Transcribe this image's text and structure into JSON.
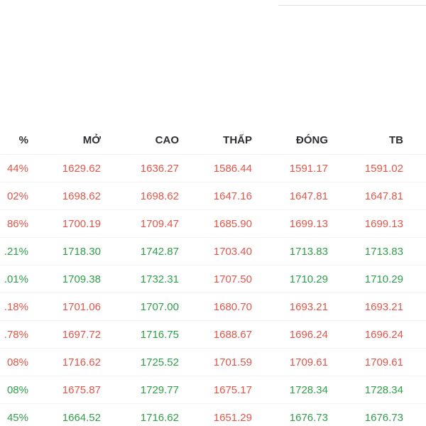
{
  "colors": {
    "up": "#2e9e48",
    "down": "#e0564a",
    "header_text": "#2e2e33",
    "divider": "#f3f3f5"
  },
  "table": {
    "headers": [
      "%",
      "MỞ",
      "CAO",
      "THẤP",
      "ĐÓNG",
      "TB"
    ],
    "column_keys": [
      "percent",
      "open",
      "high",
      "low",
      "close",
      "avg"
    ],
    "rows": [
      {
        "cells": [
          {
            "v": "44%",
            "c": "down"
          },
          {
            "v": "1629.62",
            "c": "down"
          },
          {
            "v": "1636.27",
            "c": "down"
          },
          {
            "v": "1586.44",
            "c": "down"
          },
          {
            "v": "1591.17",
            "c": "down"
          },
          {
            "v": "1591.02",
            "c": "down"
          }
        ]
      },
      {
        "cells": [
          {
            "v": "02%",
            "c": "down"
          },
          {
            "v": "1698.62",
            "c": "down"
          },
          {
            "v": "1698.62",
            "c": "down"
          },
          {
            "v": "1647.16",
            "c": "down"
          },
          {
            "v": "1647.81",
            "c": "down"
          },
          {
            "v": "1647.81",
            "c": "down"
          }
        ]
      },
      {
        "cells": [
          {
            "v": "86%",
            "c": "down"
          },
          {
            "v": "1700.19",
            "c": "down"
          },
          {
            "v": "1709.47",
            "c": "down"
          },
          {
            "v": "1685.90",
            "c": "down"
          },
          {
            "v": "1699.13",
            "c": "down"
          },
          {
            "v": "1699.13",
            "c": "down"
          }
        ]
      },
      {
        "cells": [
          {
            "v": ".21%",
            "c": "up"
          },
          {
            "v": "1718.30",
            "c": "up"
          },
          {
            "v": "1742.87",
            "c": "up"
          },
          {
            "v": "1703.40",
            "c": "down"
          },
          {
            "v": "1713.83",
            "c": "up"
          },
          {
            "v": "1713.83",
            "c": "up"
          }
        ]
      },
      {
        "cells": [
          {
            "v": ".01%",
            "c": "up"
          },
          {
            "v": "1709.38",
            "c": "up"
          },
          {
            "v": "1732.31",
            "c": "up"
          },
          {
            "v": "1707.50",
            "c": "down"
          },
          {
            "v": "1710.29",
            "c": "up"
          },
          {
            "v": "1710.29",
            "c": "up"
          }
        ]
      },
      {
        "cells": [
          {
            "v": ".18%",
            "c": "down"
          },
          {
            "v": "1701.06",
            "c": "down"
          },
          {
            "v": "1707.00",
            "c": "up"
          },
          {
            "v": "1680.70",
            "c": "down"
          },
          {
            "v": "1693.21",
            "c": "down"
          },
          {
            "v": "1693.21",
            "c": "down"
          }
        ]
      },
      {
        "cells": [
          {
            "v": ".78%",
            "c": "down"
          },
          {
            "v": "1697.72",
            "c": "down"
          },
          {
            "v": "1716.75",
            "c": "up"
          },
          {
            "v": "1688.67",
            "c": "down"
          },
          {
            "v": "1696.24",
            "c": "down"
          },
          {
            "v": "1696.24",
            "c": "down"
          }
        ]
      },
      {
        "cells": [
          {
            "v": "08%",
            "c": "down"
          },
          {
            "v": "1716.62",
            "c": "down"
          },
          {
            "v": "1725.52",
            "c": "up"
          },
          {
            "v": "1701.59",
            "c": "down"
          },
          {
            "v": "1709.61",
            "c": "down"
          },
          {
            "v": "1709.61",
            "c": "down"
          }
        ]
      },
      {
        "cells": [
          {
            "v": "08%",
            "c": "up"
          },
          {
            "v": "1675.87",
            "c": "down"
          },
          {
            "v": "1729.77",
            "c": "up"
          },
          {
            "v": "1675.17",
            "c": "down"
          },
          {
            "v": "1728.34",
            "c": "up"
          },
          {
            "v": "1728.34",
            "c": "up"
          }
        ]
      },
      {
        "cells": [
          {
            "v": "45%",
            "c": "up"
          },
          {
            "v": "1664.52",
            "c": "up"
          },
          {
            "v": "1716.62",
            "c": "up"
          },
          {
            "v": "1651.29",
            "c": "down"
          },
          {
            "v": "1676.73",
            "c": "up"
          },
          {
            "v": "1676.73",
            "c": "up"
          }
        ]
      }
    ]
  }
}
